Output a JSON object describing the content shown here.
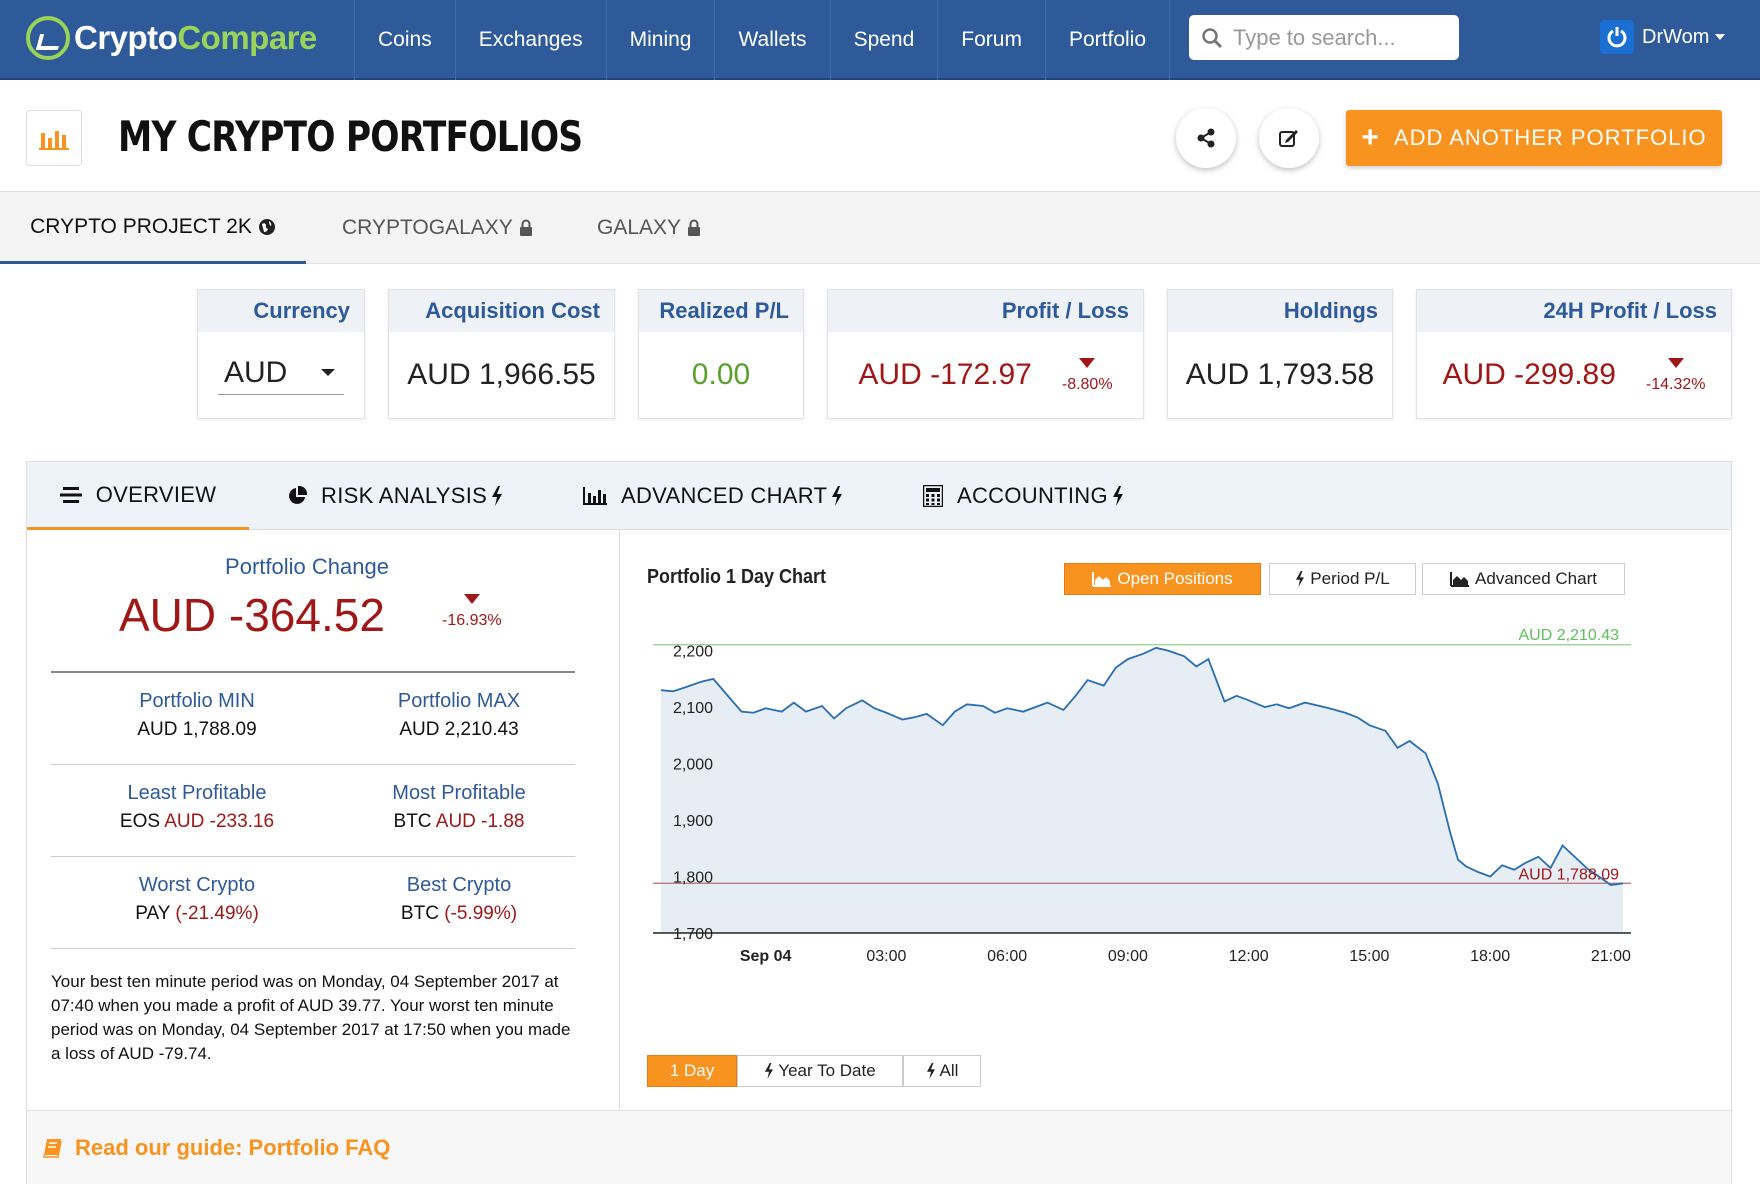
{
  "nav": {
    "logo_part1": "Crypto",
    "logo_part2": "Compare",
    "items": [
      "Coins",
      "Exchanges",
      "Mining",
      "Wallets",
      "Spend",
      "Forum",
      "Portfolio"
    ],
    "search_placeholder": "Type to search...",
    "user": "DrWom"
  },
  "header": {
    "title": "MY CRYPTO PORTFOLIOS",
    "add_button": "ADD ANOTHER PORTFOLIO"
  },
  "portfolio_tabs": [
    {
      "label": "CRYPTO PROJECT 2K",
      "icon": "globe-icon",
      "active": true
    },
    {
      "label": "CRYPTOGALAXY",
      "icon": "lock-icon",
      "active": false
    },
    {
      "label": "GALAXY",
      "icon": "lock-icon",
      "active": false
    }
  ],
  "cards": {
    "currency": {
      "label": "Currency",
      "value": "AUD"
    },
    "acquisition": {
      "label": "Acquisition Cost",
      "value": "AUD 1,966.55"
    },
    "realized": {
      "label": "Realized P/L",
      "value": "0.00"
    },
    "profit_loss": {
      "label": "Profit / Loss",
      "value": "AUD -172.97",
      "pct": "-8.80%"
    },
    "holdings": {
      "label": "Holdings",
      "value": "AUD 1,793.58"
    },
    "pl24": {
      "label": "24H Profit / Loss",
      "value": "AUD -299.89",
      "pct": "-14.32%"
    }
  },
  "sub_tabs": [
    "OVERVIEW",
    "RISK ANALYSIS",
    "ADVANCED CHART",
    "ACCOUNTING"
  ],
  "overview": {
    "change_label": "Portfolio Change",
    "change_value": "AUD -364.52",
    "change_pct": "-16.93%",
    "min_label": "Portfolio MIN",
    "min_value": "AUD 1,788.09",
    "max_label": "Portfolio MAX",
    "max_value": "AUD 2,210.43",
    "least_label": "Least Profitable",
    "least_coin": "EOS",
    "least_value": "AUD -233.16",
    "most_label": "Most Profitable",
    "most_coin": "BTC",
    "most_value": "AUD -1.88",
    "worst_label": "Worst Crypto",
    "worst_coin": "PAY",
    "worst_value": "(-21.49%)",
    "best_label": "Best Crypto",
    "best_coin": "BTC",
    "best_value": "(-5.99%)",
    "note": "Your best ten minute period was on Monday, 04 September 2017 at 07:40 when you made a profit of AUD 39.77. Your worst ten minute period was on Monday, 04 September 2017 at 17:50 when you made a loss of AUD -79.74."
  },
  "chart_panel": {
    "title": "Portfolio 1 Day Chart",
    "buttons": [
      "Open Positions",
      "Period P/L",
      "Advanced Chart"
    ],
    "ranges": [
      "1 Day",
      "Year To Date",
      "All"
    ]
  },
  "guide": "Read our guide: Portfolio FAQ",
  "colors": {
    "nav": "#2e5a9a",
    "accent": "#f7931e",
    "loss": "#a01717",
    "gain": "#5aa02c",
    "line": "#2a6db0"
  },
  "chart_data": {
    "type": "area",
    "title": "Portfolio 1 Day Chart",
    "x_ticks": [
      "Sep 04",
      "03:00",
      "06:00",
      "09:00",
      "12:00",
      "15:00",
      "18:00",
      "21:00"
    ],
    "y_ticks": [
      "2,200",
      "2,100",
      "2,000",
      "1,900",
      "1,800",
      "1,700"
    ],
    "ylim": [
      1700,
      2210
    ],
    "xlim": [
      -2.6,
      21.5
    ],
    "max_label": "AUD 2,210.43",
    "min_label": "AUD 1,788.09",
    "max_value": 2210.43,
    "min_value": 1788.09,
    "series": [
      {
        "x": [
          -2.6,
          -2.3,
          -2.0,
          -1.6,
          -1.3,
          -1.0,
          -0.6,
          -0.3,
          0.0,
          0.4,
          0.7,
          1.0,
          1.4,
          1.7,
          2.0,
          2.4,
          2.7,
          3.0,
          3.4,
          3.7,
          4.0,
          4.4,
          4.7,
          5.0,
          5.4,
          5.7,
          6.0,
          6.4,
          6.7,
          7.0,
          7.4,
          7.7,
          8.0,
          8.4,
          8.7,
          9.0,
          9.4,
          9.7,
          10.0,
          10.4,
          10.7,
          11.0,
          11.4,
          11.7,
          12.0,
          12.4,
          12.7,
          13.0,
          13.4,
          13.7,
          14.0,
          14.4,
          14.7,
          15.0,
          15.4,
          15.7,
          16.0,
          16.4,
          16.7,
          17.0,
          17.2,
          17.4,
          17.7,
          18.0,
          18.3,
          18.6,
          18.9,
          19.2,
          19.5,
          19.8,
          20.1,
          20.4,
          20.7,
          21.0,
          21.3
        ],
        "y": [
          2130,
          2128,
          2135,
          2145,
          2150,
          2125,
          2092,
          2090,
          2098,
          2092,
          2108,
          2092,
          2102,
          2080,
          2098,
          2112,
          2098,
          2090,
          2078,
          2082,
          2088,
          2068,
          2092,
          2105,
          2102,
          2090,
          2098,
          2092,
          2100,
          2108,
          2095,
          2120,
          2148,
          2138,
          2170,
          2185,
          2195,
          2205,
          2200,
          2190,
          2172,
          2185,
          2110,
          2120,
          2112,
          2100,
          2105,
          2098,
          2108,
          2103,
          2098,
          2090,
          2082,
          2068,
          2058,
          2028,
          2040,
          2018,
          1965,
          1880,
          1830,
          1818,
          1808,
          1800,
          1820,
          1812,
          1825,
          1835,
          1815,
          1855,
          1835,
          1815,
          1800,
          1785,
          1788
        ]
      }
    ]
  }
}
